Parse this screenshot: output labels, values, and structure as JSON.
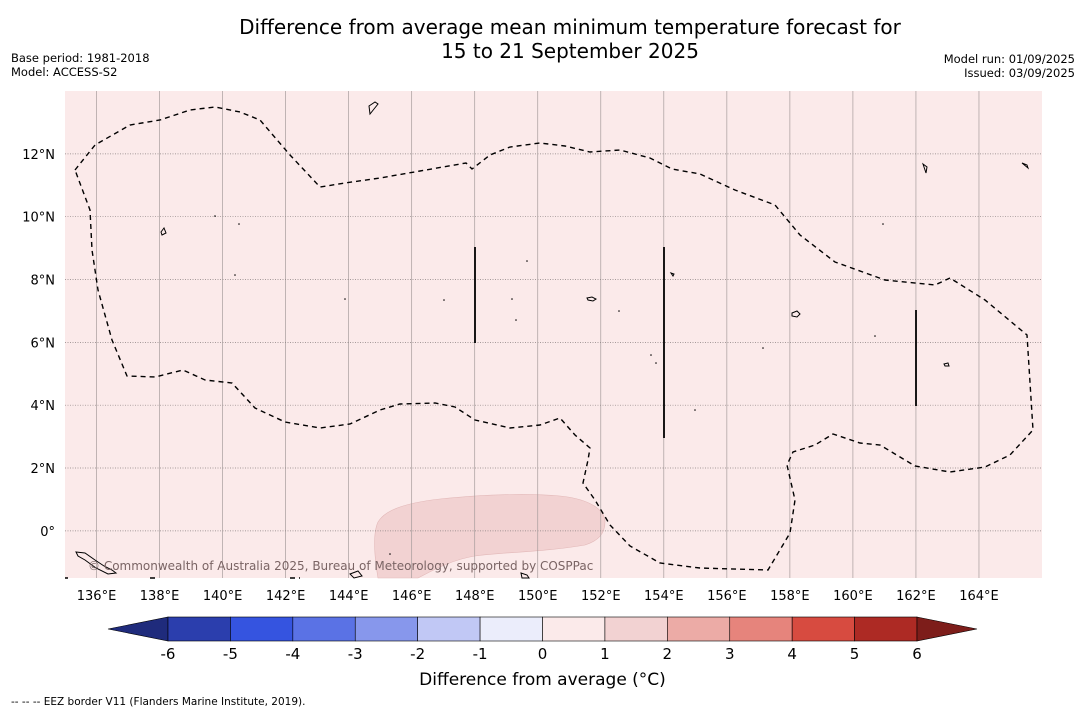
{
  "title_line1": "Difference from average mean minimum temperature forecast for",
  "title_line2": "15 to 21 September 2025",
  "base_period": "Base period: 1981-2018",
  "model": "Model: ACCESS-S2",
  "model_run": "Model run: 01/09/2025",
  "issued": "Issued: 03/09/2025",
  "copyright": "© Commonwealth of Australia 2025, Bureau of Meteorology, supported by COSPPac",
  "colorbar_title": "Difference from average (°C)",
  "footnote": "--  --  -- EEZ border V11 (Flanders Marine Institute, 2019).",
  "colors": {
    "background_anomaly": "#fbeaea",
    "warm_patch": "#f2d2d2",
    "grid": "#999999"
  },
  "map_data": {
    "lon_labels": [
      "136°E",
      "138°E",
      "140°E",
      "142°E",
      "144°E",
      "146°E",
      "148°E",
      "150°E",
      "152°E",
      "154°E",
      "156°E",
      "158°E",
      "160°E",
      "162°E",
      "164°E"
    ],
    "lat_labels": [
      "12°N",
      "10°N",
      "8°N",
      "6°N",
      "4°N",
      "2°N",
      "0°"
    ],
    "lon_range": [
      135.0,
      166.0
    ],
    "lat_range": [
      -1.5,
      14.0
    ]
  },
  "colorbar": {
    "ticks": [
      "-6",
      "-5",
      "-4",
      "-3",
      "-2",
      "-1",
      "0",
      "1",
      "2",
      "3",
      "4",
      "5",
      "6"
    ],
    "colors": [
      "#2b3ead",
      "#3554e0",
      "#5a72e5",
      "#8797ec",
      "#c1c8f5",
      "#ebedfb",
      "#fbeaea",
      "#f2d2d2",
      "#ecaba6",
      "#e6847c",
      "#d74b40",
      "#ad2a24"
    ],
    "under_color": "#1f2b7c",
    "over_color": "#7d1d1a"
  }
}
